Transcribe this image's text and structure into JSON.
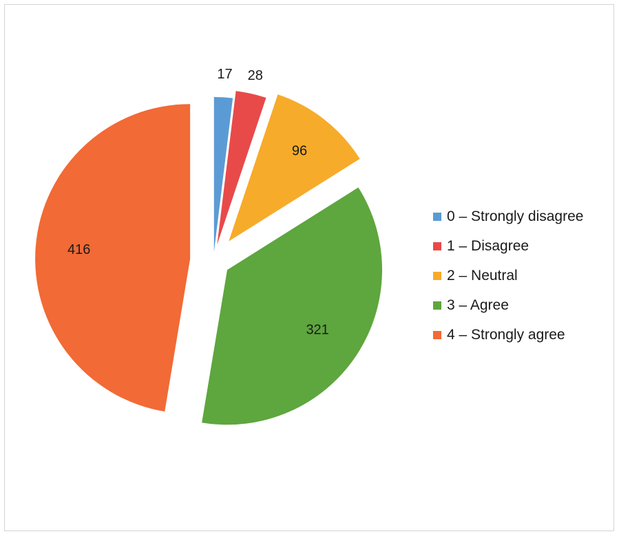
{
  "chart_data": {
    "type": "pie",
    "categories": [
      "0 – Strongly disagree",
      "1 – Disagree",
      "2 – Neutral",
      "3 – Agree",
      "4 – Strongly agree"
    ],
    "values": [
      17,
      28,
      96,
      321,
      416
    ],
    "data_labels": [
      "17",
      "28",
      "96",
      "321",
      "416"
    ],
    "colors": [
      "#5b9bd5",
      "#e84a4a",
      "#f7ab2a",
      "#5ea63e",
      "#f26a35"
    ],
    "exploded": true,
    "legend_position": "right"
  }
}
